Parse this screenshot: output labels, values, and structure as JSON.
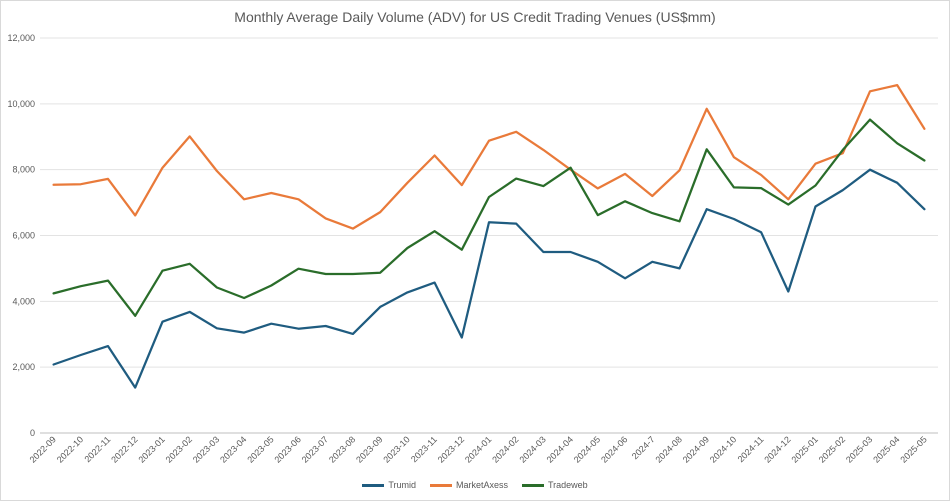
{
  "chart_data": {
    "type": "line",
    "title": "Monthly Average Daily Volume (ADV) for US Credit Trading Venues (US$mm)",
    "xlabel": "",
    "ylabel": "",
    "ylim": [
      0,
      12000
    ],
    "yticks": [
      0,
      2000,
      4000,
      6000,
      8000,
      10000,
      12000
    ],
    "ytick_labels": [
      "0",
      "2,000",
      "4,000",
      "6,000",
      "8,000",
      "10,000",
      "12,000"
    ],
    "grid": "horizontal",
    "legend_position": "bottom",
    "categories": [
      "2022-09",
      "2022-10",
      "2022-11",
      "2022-12",
      "2023-01",
      "2023-02",
      "2023-03",
      "2023-04",
      "2023-05",
      "2023-06",
      "2023-07",
      "2023-08",
      "2023-09",
      "2023-10",
      "2023-11",
      "2023-12",
      "2024-01",
      "2024-02",
      "2024-03",
      "2024-04",
      "2024-05",
      "2024-06",
      "2024-7",
      "2024-08",
      "2024-09",
      "2024-10",
      "2024-11",
      "2024-12",
      "2025-01",
      "2025-02",
      "2025-03",
      "2025-04",
      "2025-05"
    ],
    "series": [
      {
        "name": "Trumid",
        "color": "#1f5c80",
        "values": [
          2080,
          2370,
          2640,
          1380,
          3380,
          3680,
          3180,
          3050,
          3320,
          3170,
          3250,
          3010,
          3830,
          4270,
          4570,
          2900,
          6400,
          6360,
          5500,
          5500,
          5200,
          4700,
          5200,
          5000,
          6800,
          6500,
          6100,
          4300,
          6880,
          7380,
          8000,
          7600,
          6800
        ]
      },
      {
        "name": "MarketAxess",
        "color": "#e97a3a",
        "values": [
          7540,
          7560,
          7720,
          6610,
          8060,
          9010,
          7960,
          7100,
          7290,
          7100,
          6520,
          6210,
          6710,
          7600,
          8430,
          7530,
          8880,
          9150,
          8600,
          8000,
          7430,
          7870,
          7200,
          7980,
          9850,
          8380,
          7840,
          7100,
          8180,
          8500,
          10380,
          10570,
          9240
        ]
      },
      {
        "name": "Tradeweb",
        "color": "#2a6d2a",
        "values": [
          4240,
          4460,
          4630,
          3560,
          4930,
          5140,
          4420,
          4100,
          4480,
          4990,
          4830,
          4830,
          4870,
          5620,
          6130,
          5570,
          7170,
          7730,
          7500,
          8060,
          6620,
          7040,
          6680,
          6430,
          8620,
          7460,
          7440,
          6940,
          7520,
          8600,
          9520,
          8800,
          8280
        ]
      }
    ]
  }
}
